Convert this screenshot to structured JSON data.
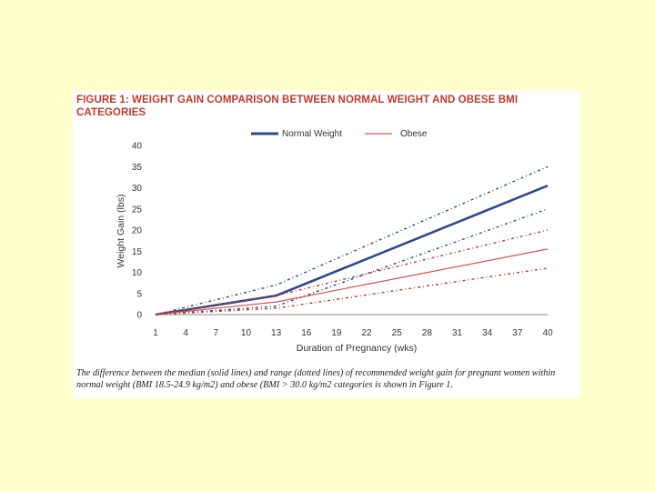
{
  "figure": {
    "title": "FIGURE 1: WEIGHT GAIN COMPARISON BETWEEN NORMAL WEIGHT AND OBESE BMI CATEGORIES",
    "caption": "The difference between the median (solid lines) and range (dotted lines) of recommended weight gain for pregnant women within normal weight (BMI 18.5-24.9 kg/m2) and obese (BMI > 30.0 kg/m2 categories is shown in Figure 1."
  },
  "colors": {
    "normal": "#2e4a8f",
    "obese": "#d9534f",
    "obese_range": "#c0392b",
    "title": "#c0392b"
  },
  "chart_data": {
    "type": "line",
    "xlabel": "Duration of Pregnancy (wks)",
    "ylabel": "Weight Gain (lbs)",
    "xlim": [
      1,
      40
    ],
    "ylim": [
      0,
      40
    ],
    "x_ticks": [
      "1",
      "4",
      "7",
      "10",
      "13",
      "16",
      "19",
      "22",
      "25",
      "28",
      "31",
      "34",
      "37",
      "40"
    ],
    "y_ticks": [
      "0",
      "5",
      "10",
      "15",
      "20",
      "25",
      "30",
      "35",
      "40"
    ],
    "legend": [
      "Normal Weight",
      "Obese"
    ],
    "series": [
      {
        "name": "Normal Weight",
        "style": "solid",
        "color": "normal",
        "x": [
          1,
          13,
          40
        ],
        "y": [
          0,
          4.5,
          30.5
        ]
      },
      {
        "name": "Normal Weight upper range",
        "style": "dotted",
        "color": "normal",
        "x": [
          1,
          13,
          40
        ],
        "y": [
          0,
          7,
          35
        ]
      },
      {
        "name": "Normal Weight lower range",
        "style": "dotted",
        "color": "normal",
        "x": [
          1,
          13,
          40
        ],
        "y": [
          0,
          2,
          25
        ]
      },
      {
        "name": "Obese",
        "style": "solid",
        "color": "obese",
        "x": [
          1,
          13,
          40
        ],
        "y": [
          0,
          3,
          15.5
        ]
      },
      {
        "name": "Obese upper range",
        "style": "dotted",
        "color": "obese_range",
        "x": [
          1,
          13,
          40
        ],
        "y": [
          0,
          4.5,
          20
        ]
      },
      {
        "name": "Obese lower range",
        "style": "dotted",
        "color": "obese_range",
        "x": [
          1,
          13,
          40
        ],
        "y": [
          0,
          1.5,
          11
        ]
      }
    ]
  }
}
